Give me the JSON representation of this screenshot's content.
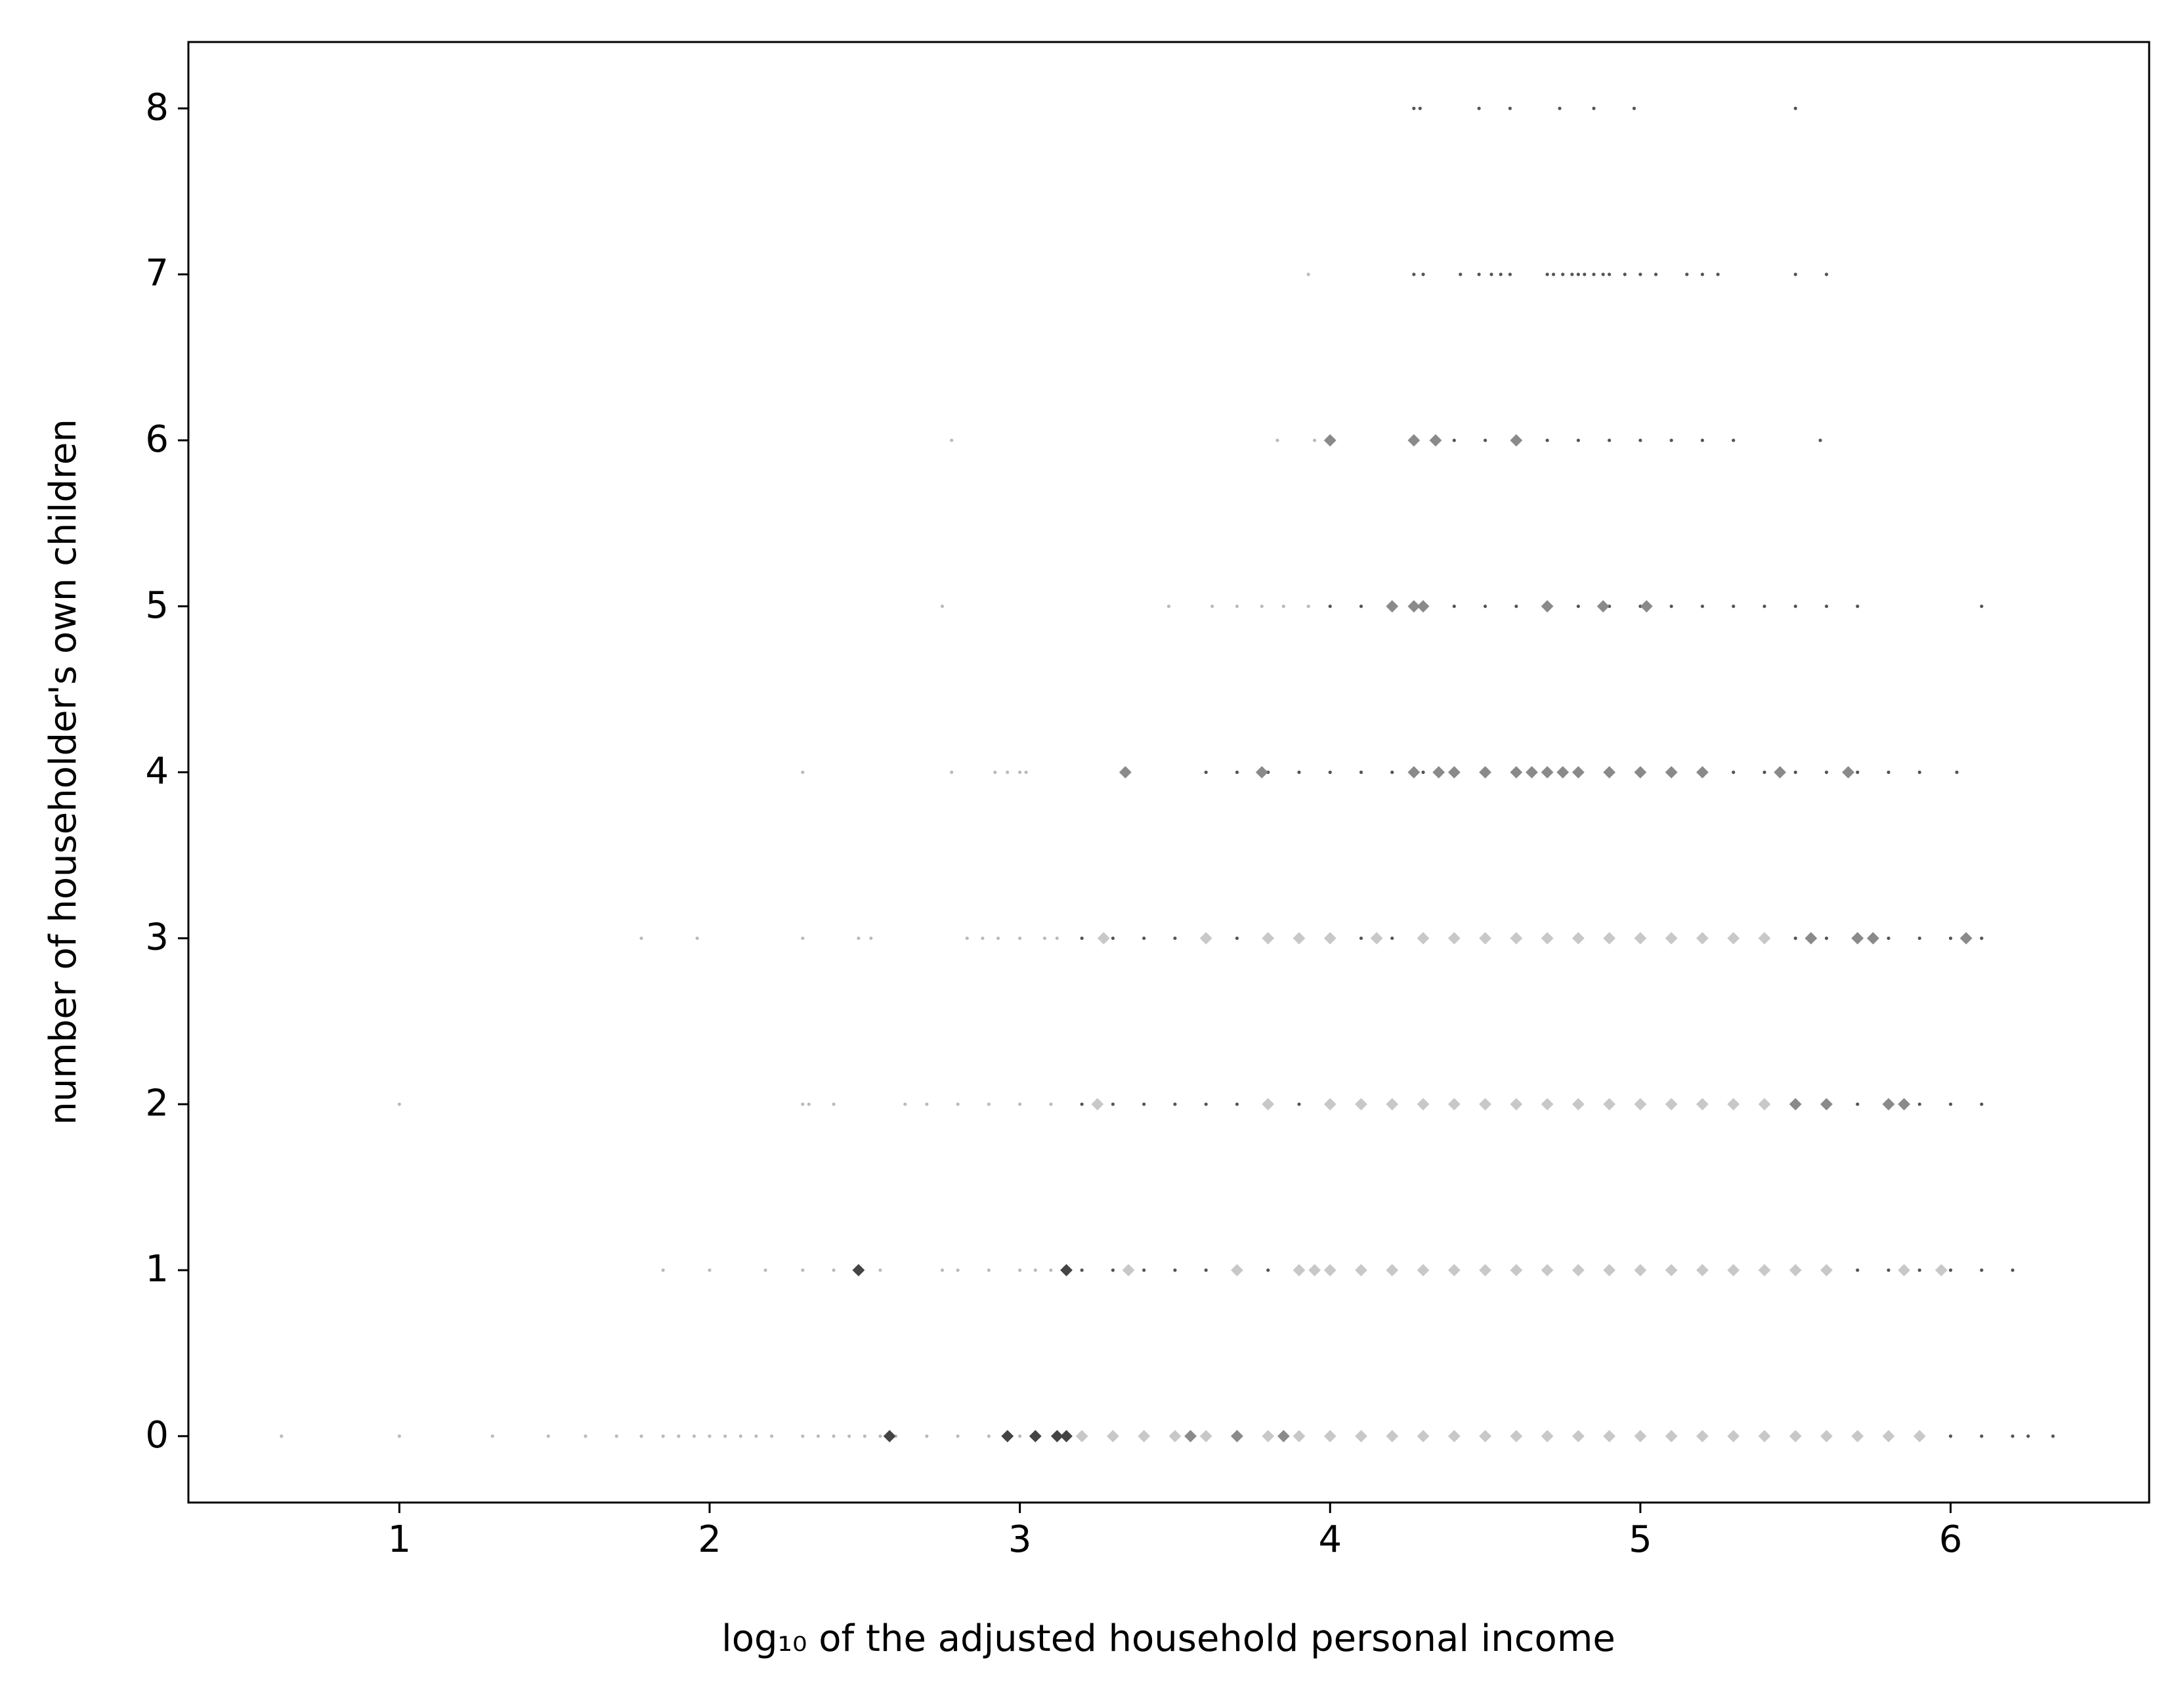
{
  "chart_data": {
    "type": "scatter",
    "xlabel": "log₁₀ of the adjusted household personal income",
    "ylabel": "number of householder's own children",
    "xlim": [
      0.32,
      6.64
    ],
    "ylim": [
      -0.4,
      8.4
    ],
    "xticks": [
      1,
      2,
      3,
      4,
      5,
      6
    ],
    "yticks": [
      0,
      1,
      2,
      3,
      4,
      5,
      6,
      7,
      8
    ],
    "grid": false,
    "series": [
      {
        "color": "#bbbbbb",
        "marker": "dot",
        "x": [
          0.62,
          1.0,
          1.3,
          1.48,
          1.6,
          1.7,
          1.78,
          1.85,
          1.9,
          1.95,
          2.0,
          2.05,
          2.1,
          2.15,
          2.2,
          2.3,
          2.35,
          2.4,
          2.45,
          2.5,
          2.55,
          2.6,
          2.7,
          2.8,
          2.9,
          3.0,
          1.85,
          2.0,
          2.18,
          2.3,
          2.4,
          2.55,
          2.75,
          2.8,
          2.9,
          3.0,
          3.05,
          3.1,
          1.0,
          2.3,
          2.32,
          2.4,
          2.63,
          2.7,
          2.8,
          2.9,
          3.0,
          3.1,
          1.78,
          1.96,
          2.3,
          2.48,
          2.52,
          2.83,
          2.88,
          2.93,
          3.0,
          3.08,
          3.12,
          2.3,
          2.78,
          2.92,
          2.96,
          3.0,
          3.02,
          2.75,
          3.48,
          3.62,
          3.7,
          3.78,
          3.85,
          3.93,
          2.78,
          3.83,
          3.95,
          3.93
        ],
        "values": [
          0,
          0,
          0,
          0,
          0,
          0,
          0,
          0,
          0,
          0,
          0,
          0,
          0,
          0,
          0,
          0,
          0,
          0,
          0,
          0,
          0,
          0,
          0,
          0,
          0,
          0,
          1,
          1,
          1,
          1,
          1,
          1,
          1,
          1,
          1,
          1,
          1,
          1,
          2,
          2,
          2,
          2,
          2,
          2,
          2,
          2,
          2,
          2,
          3,
          3,
          3,
          3,
          3,
          3,
          3,
          3,
          3,
          3,
          3,
          4,
          4,
          4,
          4,
          4,
          4,
          5,
          5,
          5,
          5,
          5,
          5,
          5,
          6,
          6,
          6,
          7
        ]
      },
      {
        "color": "#555555",
        "marker": "dot",
        "x": [
          3.2,
          3.3,
          3.4,
          3.5,
          3.6,
          3.7,
          3.8,
          3.9,
          4.0,
          4.1,
          4.2,
          4.3,
          4.4,
          4.5,
          4.6,
          4.7,
          4.8,
          4.9,
          5.0,
          5.1,
          5.2,
          5.3,
          5.4,
          5.5,
          5.6,
          5.7,
          5.8,
          5.9,
          6.0,
          6.1,
          6.2,
          6.25,
          6.33,
          3.2,
          3.3,
          3.4,
          3.5,
          3.6,
          3.7,
          3.8,
          3.9,
          4.0,
          4.1,
          4.2,
          4.3,
          4.4,
          4.5,
          4.6,
          4.7,
          4.8,
          4.9,
          5.0,
          5.1,
          5.2,
          5.3,
          5.4,
          5.5,
          5.6,
          5.7,
          5.8,
          5.9,
          6.0,
          6.1,
          6.2,
          3.2,
          3.3,
          3.4,
          3.5,
          3.6,
          3.7,
          3.8,
          3.9,
          4.0,
          4.1,
          4.2,
          4.3,
          4.4,
          4.5,
          4.6,
          4.7,
          4.8,
          4.9,
          5.0,
          5.1,
          5.2,
          5.3,
          5.4,
          5.5,
          5.6,
          5.7,
          5.8,
          5.9,
          6.0,
          6.1,
          3.2,
          3.3,
          3.4,
          3.5,
          3.6,
          3.7,
          3.8,
          3.9,
          4.0,
          4.1,
          4.2,
          4.3,
          4.4,
          4.5,
          4.6,
          4.7,
          4.8,
          4.9,
          5.0,
          5.1,
          5.2,
          5.3,
          5.4,
          5.5,
          5.6,
          5.7,
          5.8,
          5.9,
          6.0,
          6.1,
          3.6,
          3.7,
          3.8,
          3.9,
          4.0,
          4.1,
          4.2,
          4.3,
          4.4,
          4.5,
          4.6,
          4.7,
          4.8,
          4.9,
          5.0,
          5.1,
          5.2,
          5.3,
          5.4,
          5.5,
          5.6,
          5.7,
          5.8,
          5.9,
          6.02,
          4.0,
          4.1,
          4.2,
          4.3,
          4.4,
          4.5,
          4.6,
          4.7,
          4.8,
          4.9,
          5.0,
          5.1,
          5.2,
          5.3,
          5.4,
          5.5,
          5.6,
          5.7,
          6.1,
          4.4,
          4.5,
          4.6,
          4.7,
          4.8,
          4.9,
          5.0,
          5.1,
          5.2,
          5.3,
          5.58,
          4.27,
          4.3,
          4.42,
          4.48,
          4.52,
          4.55,
          4.58,
          4.7,
          4.72,
          4.75,
          4.78,
          4.8,
          4.82,
          4.85,
          4.88,
          4.9,
          4.95,
          5.0,
          5.05,
          5.15,
          5.2,
          5.25,
          5.5,
          5.6,
          4.27,
          4.29,
          4.48,
          4.58,
          4.74,
          4.85,
          4.98,
          5.5
        ],
        "values": [
          0,
          0,
          0,
          0,
          0,
          0,
          0,
          0,
          0,
          0,
          0,
          0,
          0,
          0,
          0,
          0,
          0,
          0,
          0,
          0,
          0,
          0,
          0,
          0,
          0,
          0,
          0,
          0,
          0,
          0,
          0,
          0,
          0,
          1,
          1,
          1,
          1,
          1,
          1,
          1,
          1,
          1,
          1,
          1,
          1,
          1,
          1,
          1,
          1,
          1,
          1,
          1,
          1,
          1,
          1,
          1,
          1,
          1,
          1,
          1,
          1,
          1,
          1,
          1,
          2,
          2,
          2,
          2,
          2,
          2,
          2,
          2,
          2,
          2,
          2,
          2,
          2,
          2,
          2,
          2,
          2,
          2,
          2,
          2,
          2,
          2,
          2,
          2,
          2,
          2,
          2,
          2,
          2,
          2,
          3,
          3,
          3,
          3,
          3,
          3,
          3,
          3,
          3,
          3,
          3,
          3,
          3,
          3,
          3,
          3,
          3,
          3,
          3,
          3,
          3,
          3,
          3,
          3,
          3,
          3,
          3,
          3,
          3,
          3,
          4,
          4,
          4,
          4,
          4,
          4,
          4,
          4,
          4,
          4,
          4,
          4,
          4,
          4,
          4,
          4,
          4,
          4,
          4,
          4,
          4,
          4,
          4,
          4,
          4,
          5,
          5,
          5,
          5,
          5,
          5,
          5,
          5,
          5,
          5,
          5,
          5,
          5,
          5,
          5,
          5,
          5,
          5,
          5,
          6,
          6,
          6,
          6,
          6,
          6,
          6,
          6,
          6,
          6,
          6,
          7,
          7,
          7,
          7,
          7,
          7,
          7,
          7,
          7,
          7,
          7,
          7,
          7,
          7,
          7,
          7,
          7,
          7,
          7,
          7,
          7,
          7,
          7,
          7,
          8,
          8,
          8,
          8,
          8,
          8,
          8,
          8
        ]
      },
      {
        "color": "#c8c8c8",
        "marker": "diamond",
        "x": [
          3.2,
          3.3,
          3.4,
          3.5,
          3.6,
          3.7,
          3.8,
          3.9,
          4.0,
          4.1,
          4.2,
          4.3,
          4.4,
          4.5,
          4.6,
          4.7,
          4.8,
          4.9,
          5.0,
          5.1,
          5.2,
          5.3,
          5.4,
          5.5,
          5.6,
          5.7,
          5.8,
          5.9,
          3.35,
          3.7,
          3.9,
          3.95,
          4.0,
          4.1,
          4.2,
          4.3,
          4.4,
          4.5,
          4.6,
          4.7,
          4.8,
          4.9,
          5.0,
          5.1,
          5.2,
          5.3,
          5.4,
          5.5,
          5.6,
          5.85,
          5.97,
          3.25,
          3.8,
          4.0,
          4.1,
          4.2,
          4.3,
          4.4,
          4.5,
          4.6,
          4.7,
          4.8,
          4.9,
          5.0,
          5.1,
          5.2,
          5.3,
          5.4,
          3.27,
          3.6,
          3.8,
          3.9,
          4.0,
          4.15,
          4.3,
          4.4,
          4.5,
          4.6,
          4.7,
          4.8,
          4.9,
          5.0,
          5.1,
          5.2,
          5.3,
          5.4
        ],
        "values": [
          0,
          0,
          0,
          0,
          0,
          0,
          0,
          0,
          0,
          0,
          0,
          0,
          0,
          0,
          0,
          0,
          0,
          0,
          0,
          0,
          0,
          0,
          0,
          0,
          0,
          0,
          0,
          0,
          1,
          1,
          1,
          1,
          1,
          1,
          1,
          1,
          1,
          1,
          1,
          1,
          1,
          1,
          1,
          1,
          1,
          1,
          1,
          1,
          1,
          1,
          1,
          2,
          2,
          2,
          2,
          2,
          2,
          2,
          2,
          2,
          2,
          2,
          2,
          2,
          2,
          2,
          2,
          2,
          3,
          3,
          3,
          3,
          3,
          3,
          3,
          3,
          3,
          3,
          3,
          3,
          3,
          3,
          3,
          3,
          3,
          3
        ]
      },
      {
        "color": "#8a8a8a",
        "marker": "diamond",
        "x": [
          3.55,
          3.7,
          3.85,
          5.5,
          5.6,
          5.8,
          5.85,
          5.55,
          5.7,
          5.75,
          6.05,
          3.34,
          3.78,
          4.27,
          4.35,
          4.4,
          4.5,
          4.6,
          4.65,
          4.7,
          4.75,
          4.8,
          4.9,
          5.0,
          5.1,
          5.2,
          5.45,
          5.67,
          4.2,
          4.27,
          4.3,
          4.7,
          4.88,
          5.02,
          4.0,
          4.27,
          4.34,
          4.6
        ],
        "values": [
          0,
          0,
          0,
          2,
          2,
          2,
          2,
          3,
          3,
          3,
          3,
          4,
          4,
          4,
          4,
          4,
          4,
          4,
          4,
          4,
          4,
          4,
          4,
          4,
          4,
          4,
          4,
          4,
          5,
          5,
          5,
          5,
          5,
          5,
          6,
          6,
          6,
          6
        ]
      },
      {
        "color": "#444444",
        "marker": "diamond",
        "x": [
          2.58,
          2.96,
          3.05,
          3.12,
          3.15,
          2.48,
          3.15
        ],
        "values": [
          0,
          0,
          0,
          0,
          0,
          1,
          1
        ]
      }
    ]
  }
}
